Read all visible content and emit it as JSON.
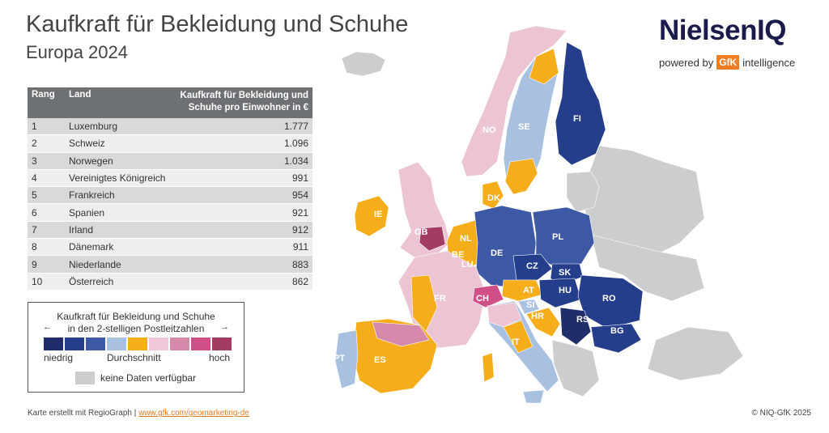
{
  "header": {
    "title": "Kaufkraft für Bekleidung und Schuhe",
    "subtitle": "Europa 2024"
  },
  "brand": {
    "name": "NielsenIQ",
    "powered_by": "powered by",
    "gfk": "GfK",
    "intelligence": "intelligence"
  },
  "table": {
    "headers": {
      "rank": "Rang",
      "country": "Land",
      "value_line1": "Kaufkraft für Bekleidung und",
      "value_line2": "Schuhe pro Einwohner in €"
    },
    "rows": [
      {
        "rank": "1",
        "country": "Luxemburg",
        "value": "1.777"
      },
      {
        "rank": "2",
        "country": "Schweiz",
        "value": "1.096"
      },
      {
        "rank": "3",
        "country": "Norwegen",
        "value": "1.034"
      },
      {
        "rank": "4",
        "country": "Vereinigtes Königreich",
        "value": "991"
      },
      {
        "rank": "5",
        "country": "Frankreich",
        "value": "954"
      },
      {
        "rank": "6",
        "country": "Spanien",
        "value": "921"
      },
      {
        "rank": "7",
        "country": "Irland",
        "value": "912"
      },
      {
        "rank": "8",
        "country": "Dänemark",
        "value": "911"
      },
      {
        "rank": "9",
        "country": "Niederlande",
        "value": "883"
      },
      {
        "rank": "10",
        "country": "Österreich",
        "value": "862"
      }
    ]
  },
  "legend": {
    "title_line1": "Kaufkraft für Bekleidung und Schuhe",
    "title_line2": "in den 2-stelligen Postleitzahlen",
    "low": "niedrig",
    "average": "Durchschnitt",
    "high": "hoch",
    "no_data": "keine Daten verfügbar",
    "colors": [
      "#1f2d6b",
      "#253e8c",
      "#3d59a5",
      "#a9c1e0",
      "#f6ad1a",
      "#f0c7d8",
      "#d58aac",
      "#cf4f86",
      "#a33c64"
    ],
    "no_data_color": "#cbcdcf"
  },
  "map": {
    "labels": [
      "NO",
      "SE",
      "FI",
      "DK",
      "IE",
      "GB",
      "NL",
      "BE",
      "LU",
      "DE",
      "PL",
      "CZ",
      "SK",
      "FR",
      "CH",
      "AT",
      "HU",
      "RO",
      "SI",
      "HR",
      "RS",
      "BG",
      "IT",
      "ES",
      "PT"
    ]
  },
  "footer": {
    "credit": "Karte erstellt mit RegioGraph |",
    "link": "www.gfk.com/geomarketing-de",
    "copyright": "© NIQ-GfK 2025"
  }
}
